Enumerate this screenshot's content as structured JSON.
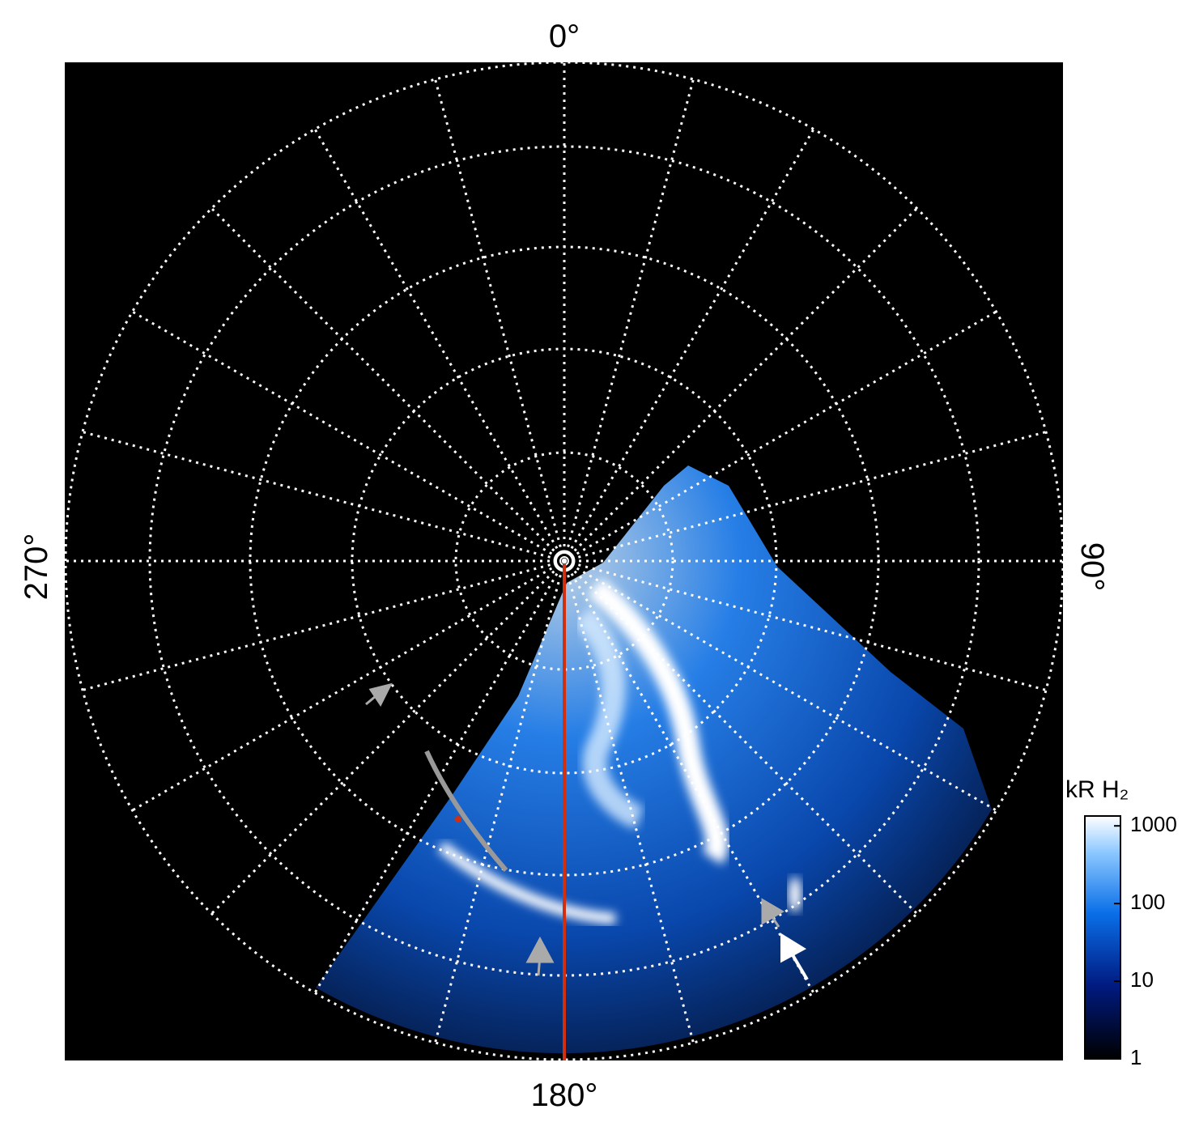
{
  "chart_data": {
    "type": "polar-image",
    "labels": {
      "top": "0°",
      "bottom": "180°",
      "left": "270°",
      "right": "90°"
    },
    "colorbar": {
      "label": "kR H₂",
      "scale": "log",
      "lim": [
        1,
        1340
      ],
      "ticks": [
        1,
        10,
        100,
        1000
      ]
    }
  }
}
